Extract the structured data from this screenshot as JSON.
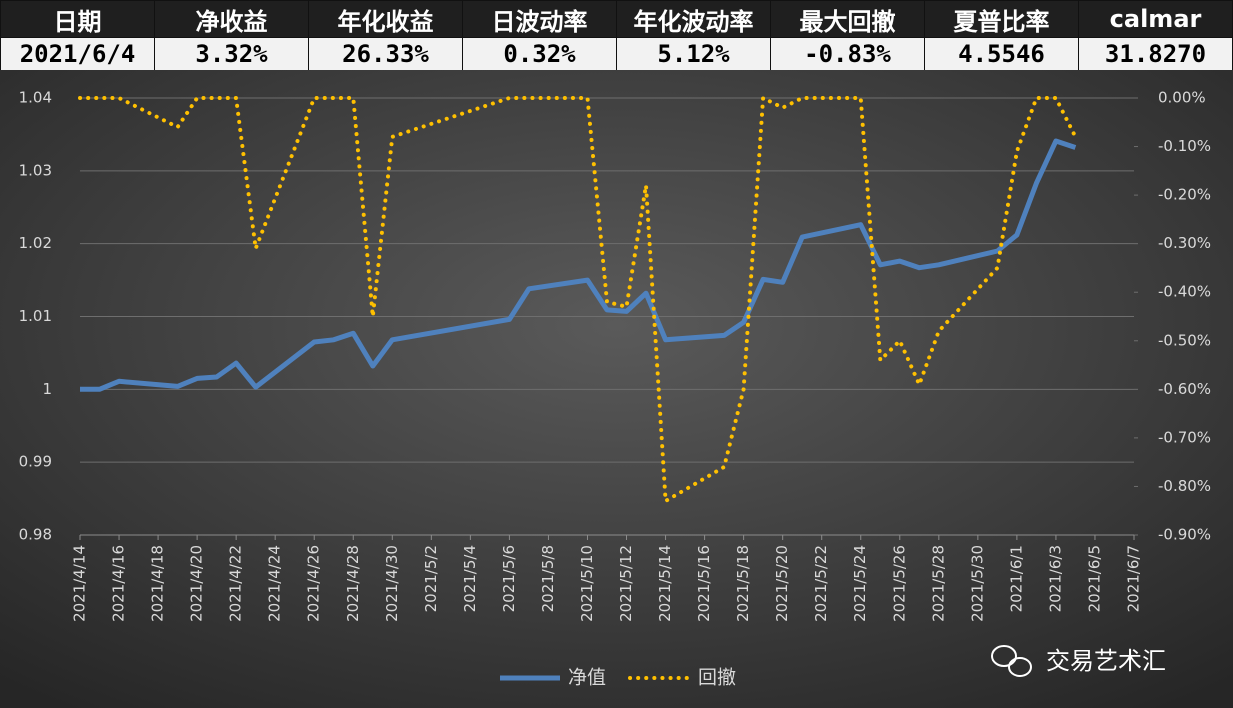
{
  "table": {
    "headers": [
      "日期",
      "净收益",
      "年化收益",
      "日波动率",
      "年化波动率",
      "最大回撤",
      "夏普比率",
      "calmar"
    ],
    "rows": [
      [
        "2021/6/4",
        "3.32%",
        "26.33%",
        "0.32%",
        "5.12%",
        "-0.83%",
        "4.5546",
        "31.8270"
      ]
    ]
  },
  "watermark": "交易艺术汇",
  "chart_data": {
    "type": "line",
    "x": [
      "2021/4/14",
      "2021/4/15",
      "2021/4/16",
      "2021/4/19",
      "2021/4/20",
      "2021/4/21",
      "2021/4/22",
      "2021/4/23",
      "2021/4/26",
      "2021/4/27",
      "2021/4/28",
      "2021/4/29",
      "2021/4/30",
      "2021/5/6",
      "2021/5/7",
      "2021/5/10",
      "2021/5/11",
      "2021/5/12",
      "2021/5/13",
      "2021/5/14",
      "2021/5/17",
      "2021/5/18",
      "2021/5/19",
      "2021/5/20",
      "2021/5/21",
      "2021/5/24",
      "2021/5/25",
      "2021/5/26",
      "2021/5/27",
      "2021/5/28",
      "2021/5/31",
      "2021/6/1",
      "2021/6/2",
      "2021/6/3",
      "2021/6/4"
    ],
    "series": [
      {
        "name": "净值",
        "color": "#4f81bd",
        "style": "solid",
        "values": [
          1.0,
          1.0,
          1.0011,
          1.0004,
          1.0015,
          1.0017,
          1.0036,
          1.0003,
          1.0065,
          1.0068,
          1.0077,
          1.0032,
          1.0068,
          1.0096,
          1.0138,
          1.015,
          1.0109,
          1.0107,
          1.0132,
          1.0068,
          1.0074,
          1.0092,
          1.0151,
          1.0147,
          1.0209,
          1.0226,
          1.0171,
          1.0176,
          1.0167,
          1.0171,
          1.019,
          1.0212,
          1.0283,
          1.0341,
          1.0332
        ]
      },
      {
        "name": "回撤",
        "color": "#ffc000",
        "style": "dotted",
        "axis": "y2",
        "values": [
          0,
          0,
          0,
          -0.06,
          0,
          0,
          0,
          -0.31,
          0,
          0,
          0,
          -0.45,
          -0.08,
          0,
          0,
          0,
          -0.42,
          -0.43,
          -0.18,
          -0.83,
          -0.76,
          -0.6,
          0,
          -0.02,
          0,
          0,
          -0.54,
          -0.5,
          -0.59,
          -0.48,
          -0.35,
          -0.11,
          0,
          0,
          -0.08
        ]
      }
    ],
    "xlim": [
      "2021/4/14",
      "2021/6/7"
    ],
    "xticks": [
      "2021/4/14",
      "2021/4/16",
      "2021/4/18",
      "2021/4/20",
      "2021/4/22",
      "2021/4/24",
      "2021/4/26",
      "2021/4/28",
      "2021/4/30",
      "2021/5/2",
      "2021/5/4",
      "2021/5/6",
      "2021/5/8",
      "2021/5/10",
      "2021/5/12",
      "2021/5/14",
      "2021/5/16",
      "2021/5/18",
      "2021/5/20",
      "2021/5/22",
      "2021/5/24",
      "2021/5/26",
      "2021/5/28",
      "2021/5/30",
      "2021/6/1",
      "2021/6/3",
      "2021/6/5",
      "2021/6/7"
    ],
    "ylim": [
      0.98,
      1.04
    ],
    "yticks": [
      0.98,
      0.99,
      1,
      1.01,
      1.02,
      1.03,
      1.04
    ],
    "y2lim": [
      -0.9,
      0
    ],
    "y2ticks": [
      {
        "value": -0.9,
        "label": "-0.90%"
      },
      {
        "value": -0.8,
        "label": "-0.80%"
      },
      {
        "value": -0.7,
        "label": "-0.70%"
      },
      {
        "value": -0.6,
        "label": "-0.60%"
      },
      {
        "value": -0.5,
        "label": "-0.50%"
      },
      {
        "value": -0.4,
        "label": "-0.40%"
      },
      {
        "value": -0.3,
        "label": "-0.30%"
      },
      {
        "value": -0.2,
        "label": "-0.20%"
      },
      {
        "value": -0.1,
        "label": "-0.10%"
      },
      {
        "value": 0,
        "label": "0.00%"
      }
    ],
    "grid": true,
    "legend": "bottom"
  }
}
